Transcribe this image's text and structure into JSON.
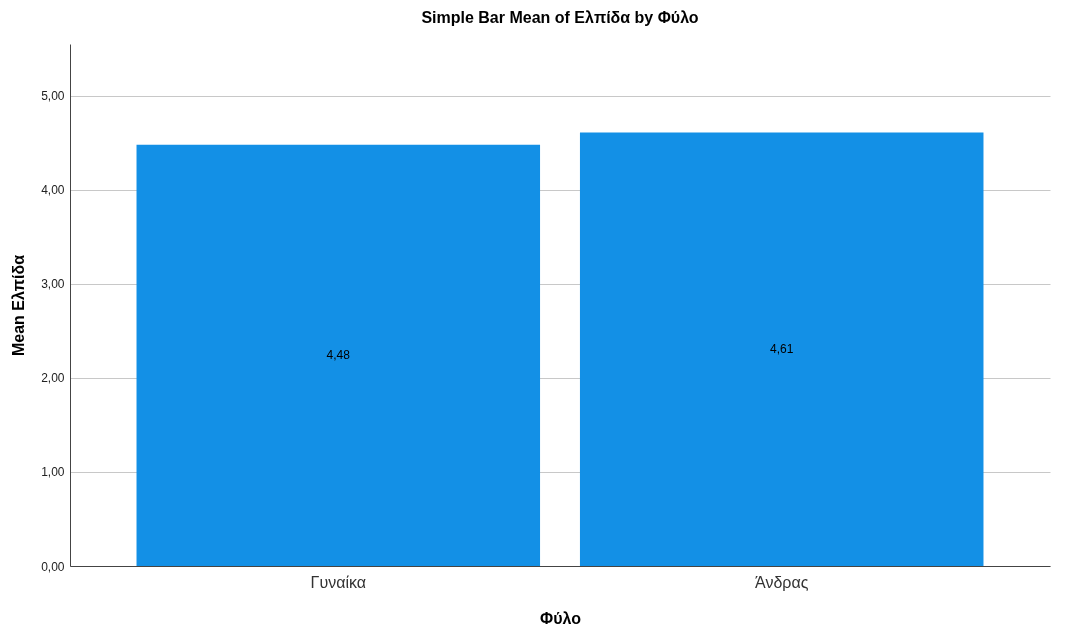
{
  "chart_data": {
    "type": "bar",
    "title": "Simple Bar Mean of Ελπίδα by Φύλο",
    "xlabel": "Φύλο",
    "ylabel": "Mean Ελπίδα",
    "categories": [
      "Γυναίκα",
      "Άνδρας"
    ],
    "values": [
      4.48,
      4.61
    ],
    "value_labels": [
      "4,48",
      "4,61"
    ],
    "color": "#1390e6",
    "ylim": [
      0,
      5.55
    ],
    "yticks": [
      {
        "value": 0,
        "label": "0,00"
      },
      {
        "value": 1,
        "label": "1,00"
      },
      {
        "value": 2,
        "label": "2,00"
      },
      {
        "value": 3,
        "label": "3,00"
      },
      {
        "value": 4,
        "label": "4,00"
      },
      {
        "value": 5,
        "label": "5,00"
      }
    ],
    "grid": "y"
  }
}
